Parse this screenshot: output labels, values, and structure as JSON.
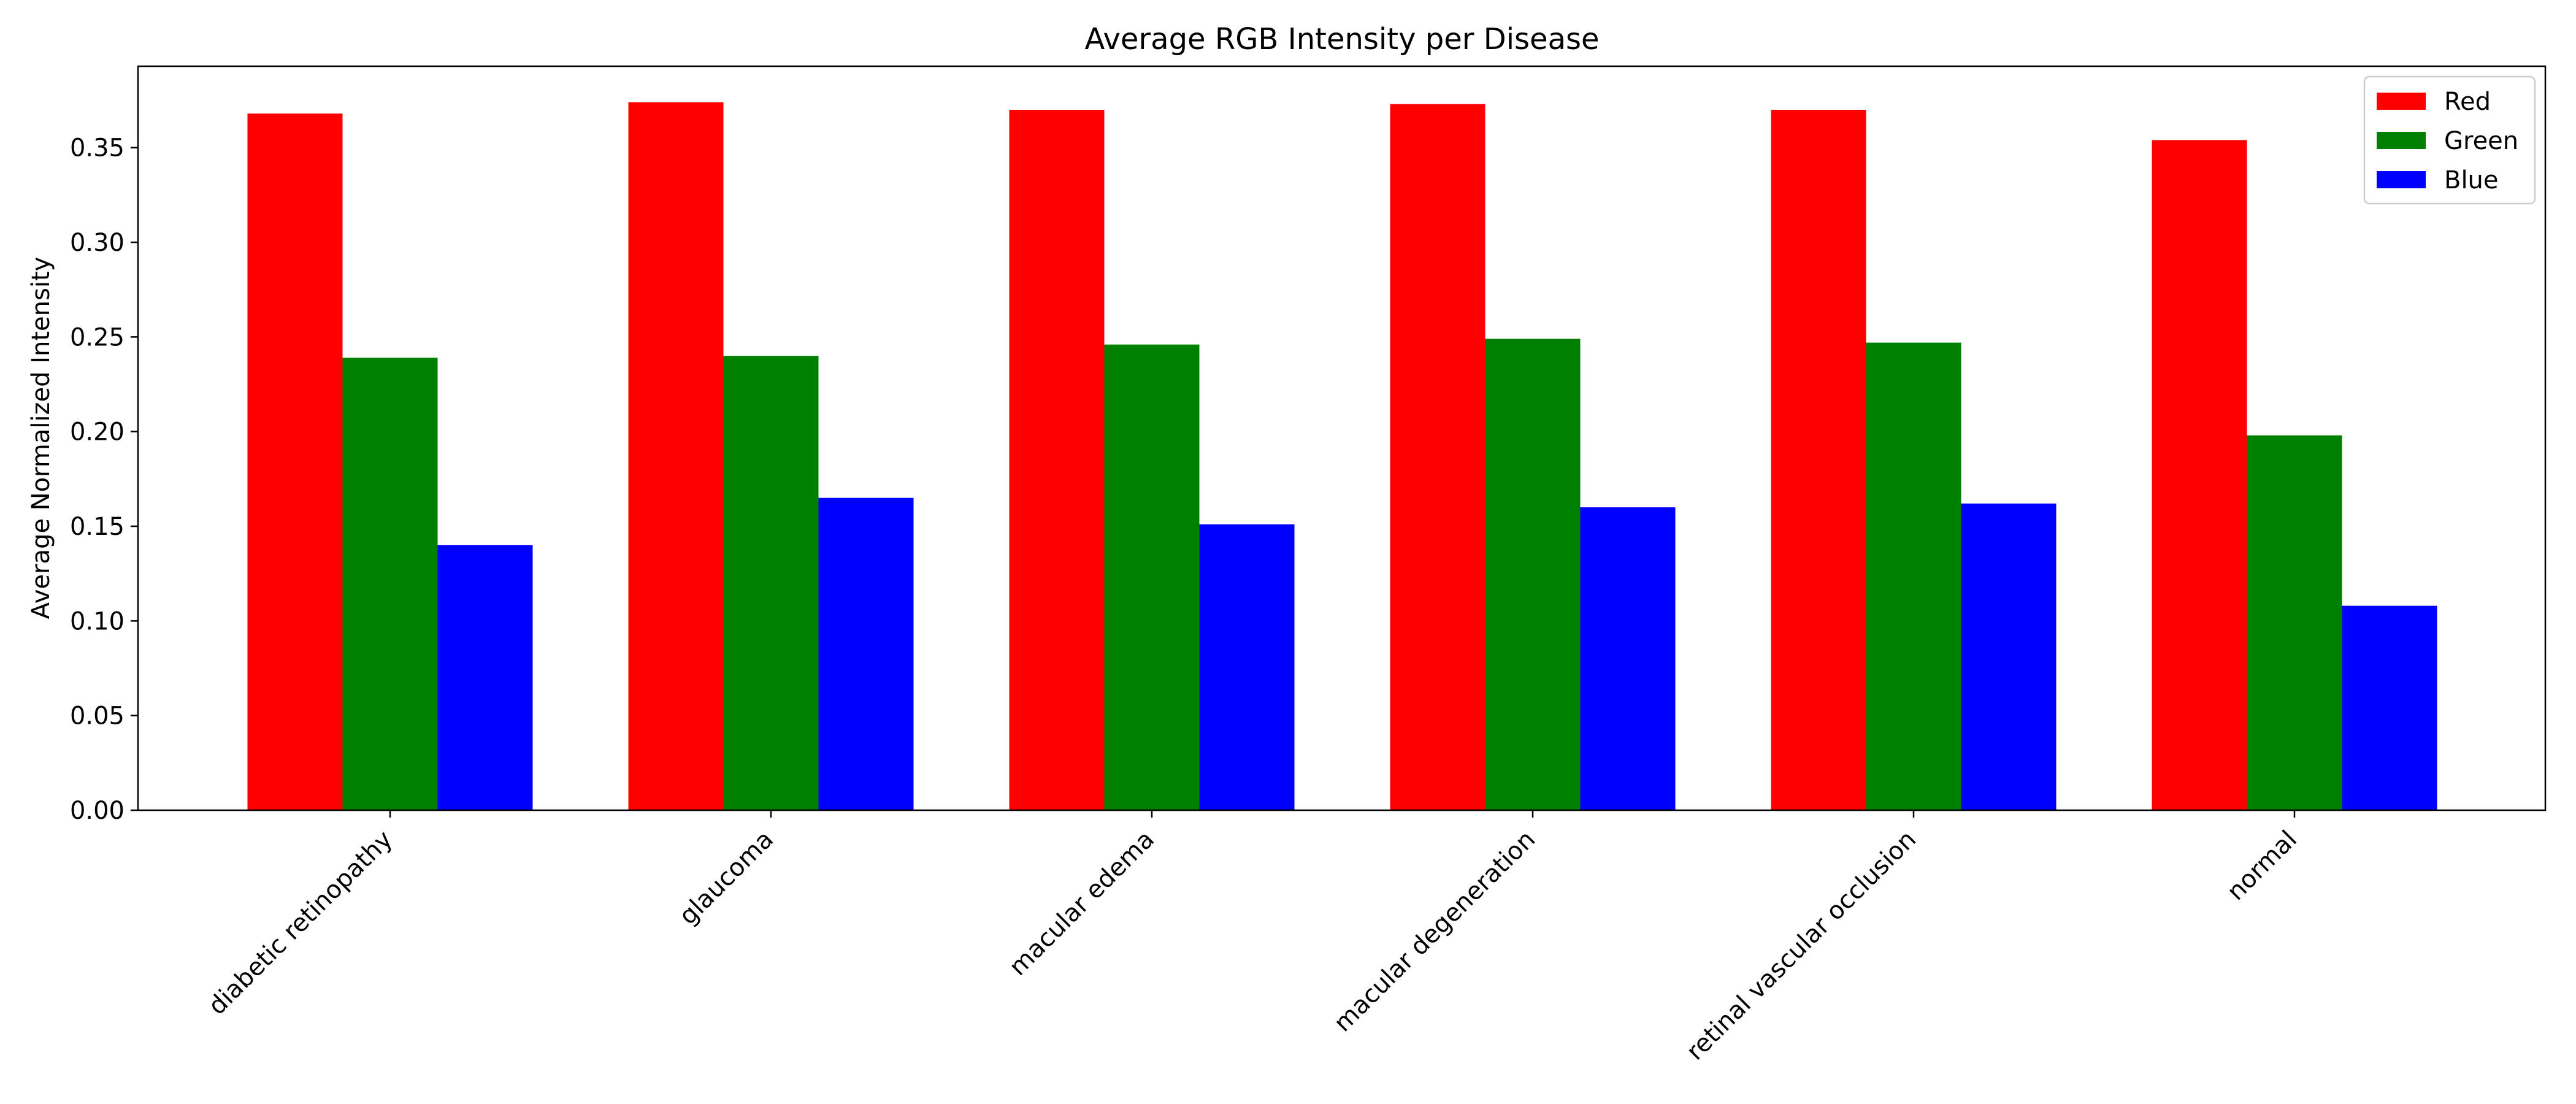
{
  "chart_data": {
    "type": "bar",
    "title": "Average RGB Intensity per Disease",
    "xlabel": "",
    "ylabel": "Average Normalized Intensity",
    "categories": [
      "diabetic retinopathy",
      "glaucoma",
      "macular edema",
      "macular degeneration",
      "retinal vascular occlusion",
      "normal"
    ],
    "series": [
      {
        "name": "Red",
        "color": "#ff0000",
        "values": [
          0.368,
          0.374,
          0.37,
          0.373,
          0.37,
          0.354
        ]
      },
      {
        "name": "Green",
        "color": "#008000",
        "values": [
          0.239,
          0.24,
          0.246,
          0.249,
          0.247,
          0.198
        ]
      },
      {
        "name": "Blue",
        "color": "#0000ff",
        "values": [
          0.14,
          0.165,
          0.151,
          0.16,
          0.162,
          0.108
        ]
      }
    ],
    "ylim": [
      0,
      0.393
    ],
    "yticks": [
      0.0,
      0.05,
      0.1,
      0.15,
      0.2,
      0.25,
      0.3,
      0.35
    ],
    "ytick_labels": [
      "0.00",
      "0.05",
      "0.10",
      "0.15",
      "0.20",
      "0.25",
      "0.30",
      "0.35"
    ],
    "grid": false,
    "legend_position": "top-right"
  }
}
